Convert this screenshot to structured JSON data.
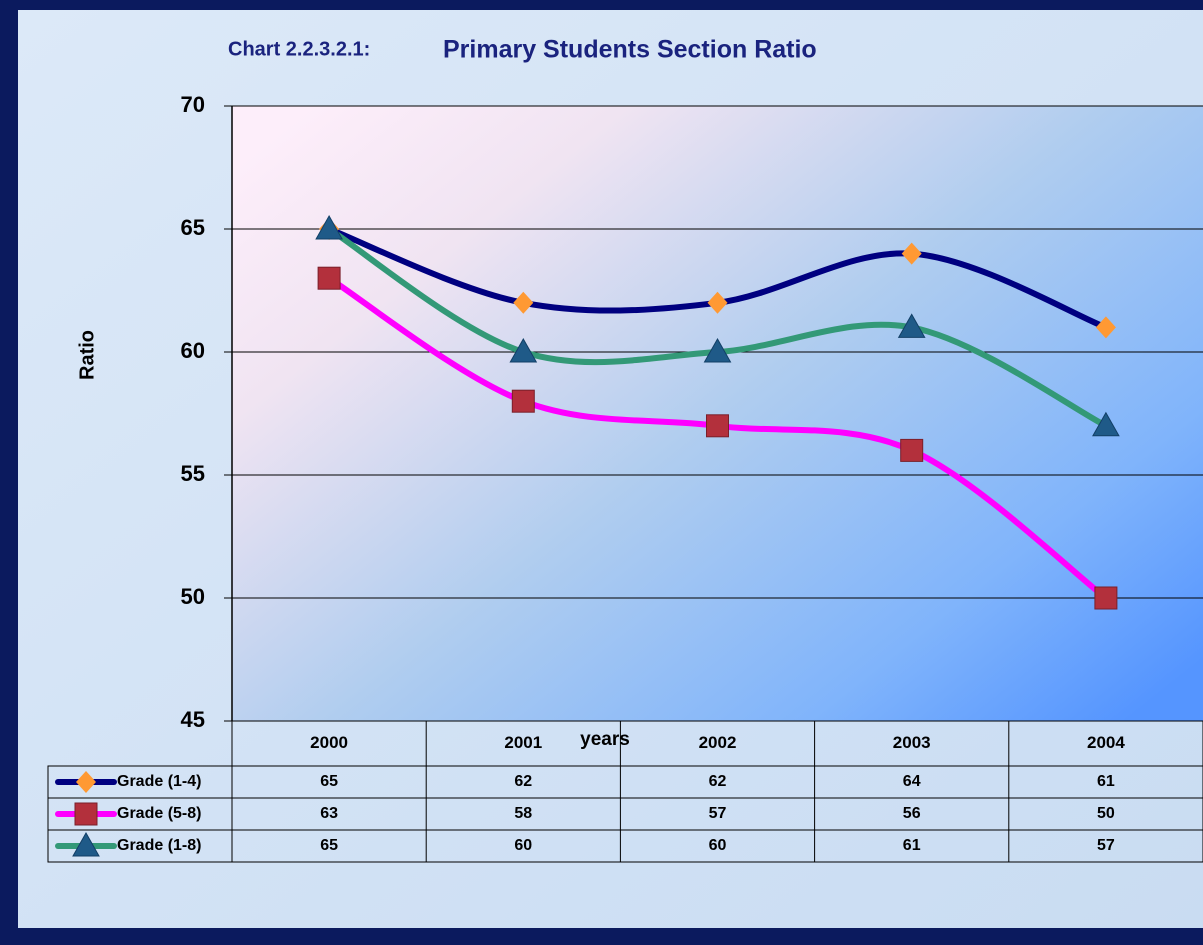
{
  "chart_data": {
    "type": "line",
    "title_label": "Chart 2.2.3.2.1:",
    "title": "Primary  Students Section Ratio",
    "x_label": "years",
    "y_label": "Ratio",
    "categories": [
      "2000",
      "2001",
      "2002",
      "2003",
      "2004"
    ],
    "series": [
      {
        "name": "Grade (1-4)",
        "color": "#000080",
        "marker": "diamond",
        "marker_color": "#ff9933",
        "values": [
          65,
          62,
          62,
          64,
          61
        ]
      },
      {
        "name": "Grade (5-8)",
        "color": "#ff00ff",
        "marker": "square",
        "marker_color": "#b3303c",
        "values": [
          63,
          58,
          57,
          56,
          50
        ]
      },
      {
        "name": "Grade (1-8)",
        "color": "#339977",
        "marker": "triangle",
        "marker_color": "#1f5a88",
        "values": [
          65,
          60,
          60,
          61,
          57
        ]
      }
    ],
    "ylim": [
      45,
      70
    ],
    "yticks": [
      45,
      50,
      55,
      60,
      65,
      70
    ],
    "grid": true,
    "smooth": true
  }
}
